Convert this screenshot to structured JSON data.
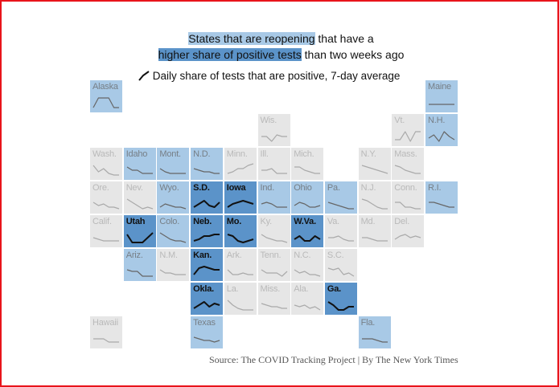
{
  "header": {
    "line1_highlight": "States that are reopening",
    "line1_rest": "that have a",
    "line2_highlight": "higher share of positive tests",
    "line2_rest": "than two weeks ago"
  },
  "legend": "Daily share of tests that are positive, 7-day average",
  "source": "Source: The COVID Tracking Project | By The New York Times",
  "states": [
    {
      "label": "Alaska",
      "color": "#a8c9e6",
      "line_color": "#666666",
      "values": [
        2,
        8,
        8,
        8,
        2,
        2
      ]
    },
    {
      "label": "Maine",
      "color": "#a8c9e6",
      "line_color": "#666666",
      "values": [
        4,
        4,
        4,
        4,
        4,
        4
      ]
    },
    {
      "label": "Wis.",
      "color": "#e6e6e6",
      "line_color": "#aaaaaa",
      "values": [
        5,
        5,
        2,
        6,
        5,
        5
      ]
    },
    {
      "label": "Vt.",
      "color": "#e6e6e6",
      "line_color": "#aaaaaa",
      "values": [
        3,
        3,
        8,
        2,
        8,
        8
      ]
    },
    {
      "label": "N.H.",
      "color": "#a8c9e6",
      "line_color": "#666666",
      "values": [
        4,
        6,
        2,
        8,
        5,
        3
      ]
    },
    {
      "label": "Wash.",
      "color": "#e6e6e6",
      "line_color": "#aaaaaa",
      "values": [
        8,
        4,
        6,
        3,
        2,
        2
      ]
    },
    {
      "label": "Idaho",
      "color": "#a8c9e6",
      "line_color": "#666666",
      "values": [
        7,
        5,
        5,
        3,
        3,
        3
      ]
    },
    {
      "label": "Mont.",
      "color": "#a8c9e6",
      "line_color": "#666666",
      "values": [
        6,
        4,
        3,
        3,
        3,
        3
      ]
    },
    {
      "label": "N.D.",
      "color": "#a8c9e6",
      "line_color": "#666666",
      "values": [
        6,
        5,
        4,
        4,
        3,
        3
      ]
    },
    {
      "label": "Minn.",
      "color": "#e6e6e6",
      "line_color": "#aaaaaa",
      "values": [
        3,
        4,
        6,
        6,
        8,
        9
      ]
    },
    {
      "label": "Ill.",
      "color": "#e6e6e6",
      "line_color": "#aaaaaa",
      "values": [
        5,
        5,
        6,
        3,
        3,
        3
      ]
    },
    {
      "label": "Mich.",
      "color": "#e6e6e6",
      "line_color": "#aaaaaa",
      "values": [
        7,
        7,
        5,
        4,
        3,
        3
      ]
    },
    {
      "label": "N.Y.",
      "color": "#e6e6e6",
      "line_color": "#aaaaaa",
      "values": [
        8,
        7,
        6,
        5,
        4,
        3
      ]
    },
    {
      "label": "Mass.",
      "color": "#e6e6e6",
      "line_color": "#aaaaaa",
      "values": [
        8,
        7,
        5,
        4,
        3,
        3
      ]
    },
    {
      "label": "Ore.",
      "color": "#e6e6e6",
      "line_color": "#aaaaaa",
      "values": [
        6,
        4,
        5,
        3,
        3,
        2
      ]
    },
    {
      "label": "Nev.",
      "color": "#e6e6e6",
      "line_color": "#aaaaaa",
      "values": [
        8,
        6,
        4,
        2,
        3,
        2
      ]
    },
    {
      "label": "Wyo.",
      "color": "#a8c9e6",
      "line_color": "#666666",
      "values": [
        3,
        5,
        4,
        3,
        3,
        2
      ]
    },
    {
      "label": "S.D.",
      "color": "#5b93c9",
      "line_color": "#111111",
      "values": [
        3,
        5,
        7,
        4,
        3,
        6
      ]
    },
    {
      "label": "Iowa",
      "color": "#5b93c9",
      "line_color": "#111111",
      "values": [
        3,
        5,
        6,
        7,
        6,
        5
      ]
    },
    {
      "label": "Ind.",
      "color": "#a8c9e6",
      "line_color": "#666666",
      "values": [
        5,
        6,
        5,
        3,
        3,
        3
      ]
    },
    {
      "label": "Ohio",
      "color": "#a8c9e6",
      "line_color": "#666666",
      "values": [
        4,
        6,
        5,
        3,
        3,
        4
      ]
    },
    {
      "label": "Pa.",
      "color": "#a8c9e6",
      "line_color": "#666666",
      "values": [
        6,
        5,
        4,
        3,
        2,
        2
      ]
    },
    {
      "label": "N.J.",
      "color": "#e6e6e6",
      "line_color": "#aaaaaa",
      "values": [
        8,
        7,
        5,
        3,
        2,
        2
      ]
    },
    {
      "label": "Conn.",
      "color": "#e6e6e6",
      "line_color": "#aaaaaa",
      "values": [
        6,
        6,
        3,
        3,
        2,
        2
      ]
    },
    {
      "label": "R.I.",
      "color": "#a8c9e6",
      "line_color": "#666666",
      "values": [
        6,
        6,
        5,
        4,
        3,
        3
      ]
    },
    {
      "label": "Calif.",
      "color": "#e6e6e6",
      "line_color": "#aaaaaa",
      "values": [
        5,
        4,
        3,
        3,
        3,
        3
      ]
    },
    {
      "label": "Utah",
      "color": "#5b93c9",
      "line_color": "#111111",
      "values": [
        7,
        2,
        2,
        2,
        5,
        8
      ]
    },
    {
      "label": "Colo.",
      "color": "#a8c9e6",
      "line_color": "#666666",
      "values": [
        8,
        6,
        4,
        3,
        3,
        2
      ]
    },
    {
      "label": "Neb.",
      "color": "#5b93c9",
      "line_color": "#111111",
      "values": [
        3,
        4,
        6,
        6,
        7,
        7
      ]
    },
    {
      "label": "Mo.",
      "color": "#5b93c9",
      "line_color": "#111111",
      "values": [
        7,
        6,
        3,
        2,
        3,
        4
      ]
    },
    {
      "label": "Ky.",
      "color": "#e6e6e6",
      "line_color": "#aaaaaa",
      "values": [
        7,
        5,
        4,
        3,
        3,
        2
      ]
    },
    {
      "label": "W.Va.",
      "color": "#5b93c9",
      "line_color": "#111111",
      "values": [
        4,
        6,
        3,
        3,
        6,
        4
      ]
    },
    {
      "label": "Va.",
      "color": "#e6e6e6",
      "line_color": "#aaaaaa",
      "values": [
        5,
        5,
        6,
        4,
        3,
        3
      ]
    },
    {
      "label": "Md.",
      "color": "#e6e6e6",
      "line_color": "#aaaaaa",
      "values": [
        5,
        5,
        4,
        3,
        3,
        3
      ]
    },
    {
      "label": "Del.",
      "color": "#e6e6e6",
      "line_color": "#aaaaaa",
      "values": [
        4,
        6,
        7,
        5,
        6,
        5
      ]
    },
    {
      "label": "Ariz.",
      "color": "#a8c9e6",
      "line_color": "#666666",
      "values": [
        6,
        5,
        5,
        2,
        2,
        2
      ]
    },
    {
      "label": "N.M.",
      "color": "#e6e6e6",
      "line_color": "#aaaaaa",
      "values": [
        6,
        4,
        4,
        3,
        3,
        3
      ]
    },
    {
      "label": "Kan.",
      "color": "#5b93c9",
      "line_color": "#111111",
      "values": [
        3,
        7,
        8,
        7,
        6,
        6
      ]
    },
    {
      "label": "Ark.",
      "color": "#e6e6e6",
      "line_color": "#aaaaaa",
      "values": [
        6,
        3,
        3,
        4,
        3,
        3
      ]
    },
    {
      "label": "Tenn.",
      "color": "#e6e6e6",
      "line_color": "#aaaaaa",
      "values": [
        6,
        4,
        4,
        4,
        2,
        5
      ]
    },
    {
      "label": "N.C.",
      "color": "#e6e6e6",
      "line_color": "#aaaaaa",
      "values": [
        6,
        4,
        5,
        3,
        3,
        2
      ]
    },
    {
      "label": "S.C.",
      "color": "#e6e6e6",
      "line_color": "#aaaaaa",
      "values": [
        7,
        6,
        7,
        3,
        4,
        2
      ]
    },
    {
      "label": "Okla.",
      "color": "#5b93c9",
      "line_color": "#111111",
      "values": [
        3,
        5,
        7,
        4,
        6,
        5
      ]
    },
    {
      "label": "La.",
      "color": "#e6e6e6",
      "line_color": "#aaaaaa",
      "values": [
        8,
        5,
        3,
        2,
        2,
        2
      ]
    },
    {
      "label": "Miss.",
      "color": "#e6e6e6",
      "line_color": "#aaaaaa",
      "values": [
        6,
        5,
        4,
        4,
        3,
        3
      ]
    },
    {
      "label": "Ala.",
      "color": "#e6e6e6",
      "line_color": "#aaaaaa",
      "values": [
        5,
        4,
        5,
        3,
        4,
        2
      ]
    },
    {
      "label": "Ga.",
      "color": "#5b93c9",
      "line_color": "#111111",
      "values": [
        7,
        5,
        2,
        2,
        4,
        4
      ]
    },
    {
      "label": "Hawaii",
      "color": "#e6e6e6",
      "line_color": "#aaaaaa",
      "values": [
        5,
        5,
        5,
        3,
        3,
        3
      ]
    },
    {
      "label": "Texas",
      "color": "#a8c9e6",
      "line_color": "#666666",
      "values": [
        6,
        5,
        4,
        4,
        3,
        4
      ]
    },
    {
      "label": "Fla.",
      "color": "#a8c9e6",
      "line_color": "#666666",
      "values": [
        5,
        5,
        5,
        4,
        3,
        3
      ]
    }
  ]
}
